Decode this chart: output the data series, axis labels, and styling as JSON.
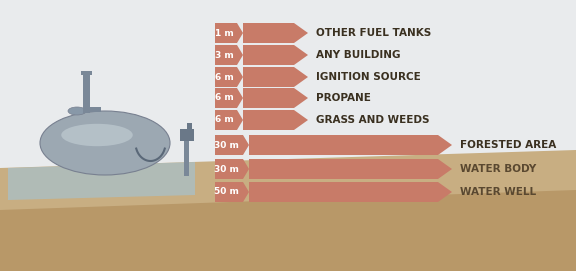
{
  "bg_sky": "#e9ebed",
  "arrow_color": "#c87b68",
  "arrow_color_light": "#d4948a",
  "ground_color": "#c8ae82",
  "underground_color": "#b89868",
  "platform_color": "#a8c0c8",
  "tank_body": "#9ca8b2",
  "tank_light": "#c8d4da",
  "tank_dark": "#788090",
  "pipe_color": "#7a8898",
  "label_color_above": "#3a3020",
  "label_color_below": "#5a4830",
  "dist_text_color": "#ffffff",
  "rows": [
    {
      "distance": "1 m",
      "label": "OTHER FUEL TANKS",
      "short": true,
      "above_ground": true
    },
    {
      "distance": "3 m",
      "label": "ANY BUILDING",
      "short": true,
      "above_ground": true
    },
    {
      "distance": "6 m",
      "label": "IGNITION SOURCE",
      "short": true,
      "above_ground": true
    },
    {
      "distance": "6 m",
      "label": "PROPANE",
      "short": true,
      "above_ground": true
    },
    {
      "distance": "6 m",
      "label": "GRASS AND WEEDS",
      "short": true,
      "above_ground": true
    },
    {
      "distance": "30 m",
      "label": "FORESTED AREA",
      "short": false,
      "above_ground": true
    },
    {
      "distance": "30 m",
      "label": "WATER BODY",
      "short": false,
      "above_ground": false
    },
    {
      "distance": "50 m",
      "label": "WATER WELL",
      "short": false,
      "above_ground": false
    }
  ],
  "figsize": [
    5.76,
    2.71
  ],
  "dpi": 100
}
